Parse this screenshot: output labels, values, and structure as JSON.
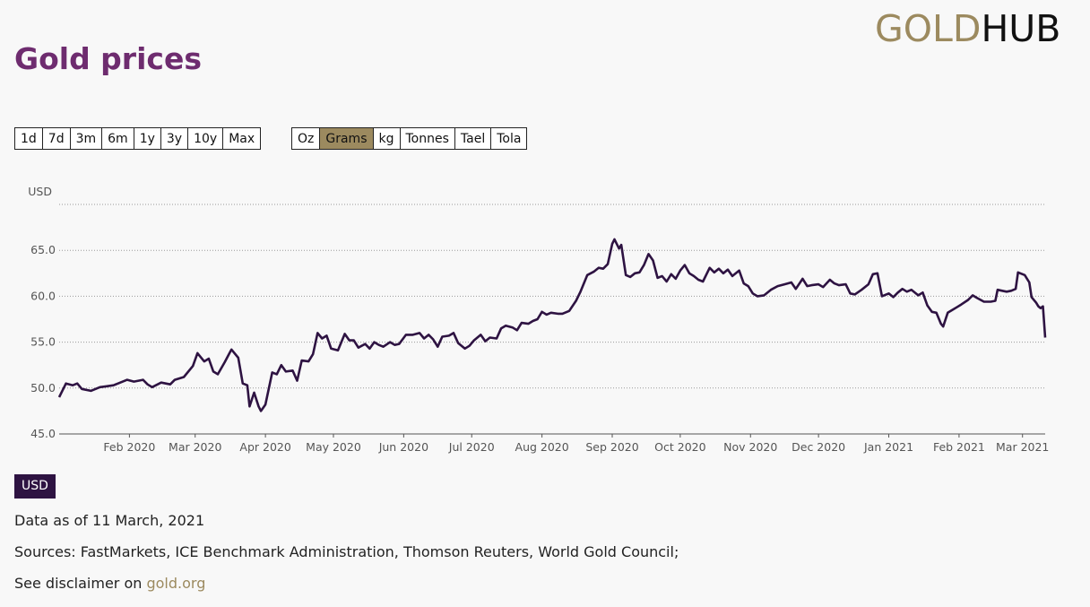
{
  "header": {
    "title": "Gold prices",
    "logo_gold": "GOLD",
    "logo_hub": "HUB"
  },
  "range_buttons": [
    "1d",
    "7d",
    "3m",
    "6m",
    "1y",
    "3y",
    "10y",
    "Max"
  ],
  "unit_buttons": [
    "Oz",
    "Grams",
    "kg",
    "Tonnes",
    "Tael",
    "Tola"
  ],
  "active_unit": "Grams",
  "currency_badge": "USD",
  "footer": {
    "data_as_of": "Data as of 11 March, 2021",
    "sources": "Sources: FastMarkets, ICE Benchmark Administration, Thomson Reuters, World Gold Council;",
    "disclaimer_prefix": "See disclaimer on ",
    "disclaimer_link": "gold.org"
  },
  "colors": {
    "title": "#6e2c6f",
    "accent": "#9c8a5f",
    "line": "#2e1342",
    "badge": "#2e1342"
  },
  "chart_data": {
    "type": "line",
    "ylabel": "USD",
    "ylim": [
      45,
      70
    ],
    "yticks": [
      45.0,
      50.0,
      55.0,
      60.0,
      65.0
    ],
    "xlim": [
      "2020-01-01",
      "2021-03-11"
    ],
    "xticks": [
      {
        "date": "2020-02-01",
        "label": "Feb 2020"
      },
      {
        "date": "2020-03-01",
        "label": "Mar 2020"
      },
      {
        "date": "2020-04-01",
        "label": "Apr 2020"
      },
      {
        "date": "2020-05-01",
        "label": "May 2020"
      },
      {
        "date": "2020-06-01",
        "label": "Jun 2020"
      },
      {
        "date": "2020-07-01",
        "label": "Jul 2020"
      },
      {
        "date": "2020-08-01",
        "label": "Aug 2020"
      },
      {
        "date": "2020-09-01",
        "label": "Sep 2020"
      },
      {
        "date": "2020-10-01",
        "label": "Oct 2020"
      },
      {
        "date": "2020-11-01",
        "label": "Nov 2020"
      },
      {
        "date": "2020-12-01",
        "label": "Dec 2020"
      },
      {
        "date": "2021-01-01",
        "label": "Jan 2021"
      },
      {
        "date": "2021-02-01",
        "label": "Feb 2021"
      },
      {
        "date": "2021-03-01",
        "label": "Mar 2021"
      }
    ],
    "grid": true,
    "series": [
      {
        "points": [
          [
            "2020-01-01",
            49.0
          ],
          [
            "2020-01-04",
            50.5
          ],
          [
            "2020-01-07",
            50.3
          ],
          [
            "2020-01-09",
            50.5
          ],
          [
            "2020-01-11",
            49.9
          ],
          [
            "2020-01-15",
            49.7
          ],
          [
            "2020-01-19",
            50.1
          ],
          [
            "2020-01-22",
            50.2
          ],
          [
            "2020-01-25",
            50.3
          ],
          [
            "2020-01-27",
            50.5
          ],
          [
            "2020-01-31",
            50.9
          ],
          [
            "2020-02-03",
            50.7
          ],
          [
            "2020-02-07",
            50.9
          ],
          [
            "2020-02-09",
            50.4
          ],
          [
            "2020-02-11",
            50.1
          ],
          [
            "2020-02-15",
            50.6
          ],
          [
            "2020-02-19",
            50.4
          ],
          [
            "2020-02-21",
            50.9
          ],
          [
            "2020-02-25",
            51.2
          ],
          [
            "2020-02-29",
            52.4
          ],
          [
            "2020-03-02",
            53.8
          ],
          [
            "2020-03-05",
            52.9
          ],
          [
            "2020-03-07",
            53.2
          ],
          [
            "2020-03-09",
            51.8
          ],
          [
            "2020-03-11",
            51.5
          ],
          [
            "2020-03-14",
            52.8
          ],
          [
            "2020-03-17",
            54.2
          ],
          [
            "2020-03-20",
            53.3
          ],
          [
            "2020-03-22",
            50.5
          ],
          [
            "2020-03-24",
            50.3
          ],
          [
            "2020-03-25",
            48.0
          ],
          [
            "2020-03-27",
            49.5
          ],
          [
            "2020-03-29",
            48.0
          ],
          [
            "2020-03-30",
            47.5
          ],
          [
            "2020-04-01",
            48.2
          ],
          [
            "2020-04-04",
            51.7
          ],
          [
            "2020-04-06",
            51.5
          ],
          [
            "2020-04-08",
            52.5
          ],
          [
            "2020-04-10",
            51.8
          ],
          [
            "2020-04-13",
            51.9
          ],
          [
            "2020-04-15",
            50.8
          ],
          [
            "2020-04-17",
            53.0
          ],
          [
            "2020-04-20",
            52.9
          ],
          [
            "2020-04-22",
            53.7
          ],
          [
            "2020-04-24",
            56.0
          ],
          [
            "2020-04-26",
            55.4
          ],
          [
            "2020-04-28",
            55.7
          ],
          [
            "2020-04-30",
            54.3
          ],
          [
            "2020-05-03",
            54.1
          ],
          [
            "2020-05-06",
            55.9
          ],
          [
            "2020-05-08",
            55.2
          ],
          [
            "2020-05-10",
            55.2
          ],
          [
            "2020-05-12",
            54.4
          ],
          [
            "2020-05-15",
            54.8
          ],
          [
            "2020-05-17",
            54.3
          ],
          [
            "2020-05-19",
            55.0
          ],
          [
            "2020-05-21",
            54.7
          ],
          [
            "2020-05-23",
            54.5
          ],
          [
            "2020-05-26",
            55.0
          ],
          [
            "2020-05-28",
            54.7
          ],
          [
            "2020-05-30",
            54.8
          ],
          [
            "2020-06-02",
            55.8
          ],
          [
            "2020-06-05",
            55.8
          ],
          [
            "2020-06-08",
            56.0
          ],
          [
            "2020-06-10",
            55.4
          ],
          [
            "2020-06-12",
            55.8
          ],
          [
            "2020-06-14",
            55.3
          ],
          [
            "2020-06-16",
            54.5
          ],
          [
            "2020-06-18",
            55.6
          ],
          [
            "2020-06-21",
            55.7
          ],
          [
            "2020-06-23",
            56.0
          ],
          [
            "2020-06-25",
            54.9
          ],
          [
            "2020-06-28",
            54.3
          ],
          [
            "2020-06-30",
            54.6
          ],
          [
            "2020-07-02",
            55.2
          ],
          [
            "2020-07-05",
            55.8
          ],
          [
            "2020-07-07",
            55.1
          ],
          [
            "2020-07-09",
            55.5
          ],
          [
            "2020-07-12",
            55.4
          ],
          [
            "2020-07-14",
            56.5
          ],
          [
            "2020-07-16",
            56.8
          ],
          [
            "2020-07-19",
            56.6
          ],
          [
            "2020-07-21",
            56.3
          ],
          [
            "2020-07-23",
            57.1
          ],
          [
            "2020-07-26",
            57.0
          ],
          [
            "2020-07-28",
            57.3
          ],
          [
            "2020-07-30",
            57.5
          ],
          [
            "2020-08-01",
            58.3
          ],
          [
            "2020-08-03",
            58.0
          ],
          [
            "2020-08-05",
            58.2
          ],
          [
            "2020-08-08",
            58.1
          ],
          [
            "2020-08-10",
            58.1
          ],
          [
            "2020-08-13",
            58.4
          ],
          [
            "2020-08-16",
            59.5
          ],
          [
            "2020-08-18",
            60.5
          ],
          [
            "2020-08-21",
            62.3
          ],
          [
            "2020-08-24",
            62.7
          ],
          [
            "2020-08-26",
            63.1
          ],
          [
            "2020-08-28",
            63.0
          ],
          [
            "2020-08-30",
            63.5
          ],
          [
            "2020-09-01",
            65.7
          ],
          [
            "2020-09-02",
            66.2
          ],
          [
            "2020-09-04",
            65.2
          ],
          [
            "2020-09-05",
            65.6
          ],
          [
            "2020-09-07",
            62.3
          ],
          [
            "2020-09-09",
            62.1
          ],
          [
            "2020-09-11",
            62.5
          ],
          [
            "2020-09-13",
            62.6
          ],
          [
            "2020-09-15",
            63.4
          ],
          [
            "2020-09-17",
            64.6
          ],
          [
            "2020-09-19",
            63.9
          ],
          [
            "2020-09-21",
            62.0
          ],
          [
            "2020-09-23",
            62.2
          ],
          [
            "2020-09-25",
            61.6
          ],
          [
            "2020-09-27",
            62.4
          ],
          [
            "2020-09-29",
            61.9
          ],
          [
            "2020-10-01",
            62.8
          ],
          [
            "2020-10-03",
            63.4
          ],
          [
            "2020-10-05",
            62.5
          ],
          [
            "2020-10-07",
            62.2
          ],
          [
            "2020-10-09",
            61.8
          ],
          [
            "2020-10-11",
            61.6
          ],
          [
            "2020-10-14",
            63.1
          ],
          [
            "2020-10-16",
            62.6
          ],
          [
            "2020-10-18",
            63.0
          ],
          [
            "2020-10-20",
            62.5
          ],
          [
            "2020-10-22",
            62.9
          ],
          [
            "2020-10-24",
            62.2
          ],
          [
            "2020-10-27",
            62.8
          ],
          [
            "2020-10-29",
            61.4
          ],
          [
            "2020-10-31",
            61.1
          ],
          [
            "2020-11-02",
            60.3
          ],
          [
            "2020-11-04",
            60.0
          ],
          [
            "2020-11-07",
            60.1
          ],
          [
            "2020-11-10",
            60.7
          ],
          [
            "2020-11-13",
            61.1
          ],
          [
            "2020-11-16",
            61.3
          ],
          [
            "2020-11-19",
            61.5
          ],
          [
            "2020-11-21",
            60.8
          ],
          [
            "2020-11-24",
            61.9
          ],
          [
            "2020-11-26",
            61.1
          ],
          [
            "2020-11-28",
            61.2
          ],
          [
            "2020-12-01",
            61.3
          ],
          [
            "2020-12-03",
            61.0
          ],
          [
            "2020-12-06",
            61.8
          ],
          [
            "2020-12-08",
            61.4
          ],
          [
            "2020-12-10",
            61.2
          ],
          [
            "2020-12-13",
            61.3
          ],
          [
            "2020-12-15",
            60.3
          ],
          [
            "2020-12-17",
            60.2
          ],
          [
            "2020-12-20",
            60.7
          ],
          [
            "2020-12-23",
            61.3
          ],
          [
            "2020-12-25",
            62.4
          ],
          [
            "2020-12-27",
            62.5
          ],
          [
            "2020-12-29",
            60.0
          ],
          [
            "2021-01-01",
            60.3
          ],
          [
            "2021-01-03",
            59.9
          ],
          [
            "2021-01-05",
            60.4
          ],
          [
            "2021-01-07",
            60.8
          ],
          [
            "2021-01-09",
            60.5
          ],
          [
            "2021-01-11",
            60.7
          ],
          [
            "2021-01-14",
            60.1
          ],
          [
            "2021-01-16",
            60.4
          ],
          [
            "2021-01-18",
            59.0
          ],
          [
            "2021-01-20",
            58.3
          ],
          [
            "2021-01-22",
            58.2
          ],
          [
            "2021-01-24",
            57.0
          ],
          [
            "2021-01-25",
            56.7
          ],
          [
            "2021-01-27",
            58.2
          ],
          [
            "2021-01-29",
            58.5
          ],
          [
            "2021-01-31",
            58.8
          ],
          [
            "2021-02-02",
            59.1
          ],
          [
            "2021-02-05",
            59.6
          ],
          [
            "2021-02-07",
            60.1
          ],
          [
            "2021-02-09",
            59.8
          ],
          [
            "2021-02-12",
            59.4
          ],
          [
            "2021-02-15",
            59.4
          ],
          [
            "2021-02-17",
            59.5
          ],
          [
            "2021-02-18",
            60.7
          ],
          [
            "2021-02-20",
            60.6
          ],
          [
            "2021-02-22",
            60.5
          ],
          [
            "2021-02-24",
            60.6
          ],
          [
            "2021-02-26",
            60.8
          ],
          [
            "2021-02-27",
            62.6
          ],
          [
            "2021-03-01",
            62.4
          ],
          [
            "2021-03-02",
            62.3
          ],
          [
            "2021-03-04",
            61.5
          ],
          [
            "2021-03-05",
            59.9
          ],
          [
            "2021-03-07",
            59.3
          ],
          [
            "2021-03-08",
            58.9
          ],
          [
            "2021-03-09",
            58.7
          ],
          [
            "2021-03-10",
            58.9
          ],
          [
            "2021-03-11",
            55.5
          ]
        ]
      }
    ]
  }
}
